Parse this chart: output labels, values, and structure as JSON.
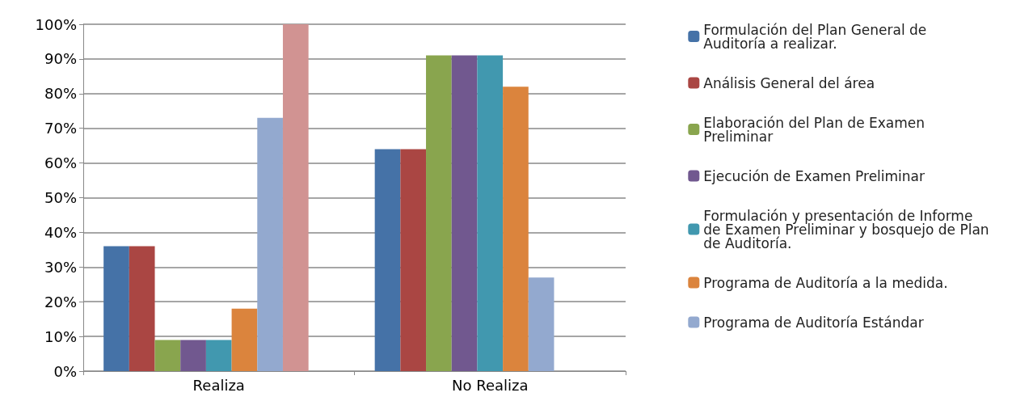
{
  "chart_data": {
    "type": "bar",
    "categories": [
      "Realiza",
      "No Realiza"
    ],
    "series": [
      {
        "name": "Formulación del Plan General de Auditoría a realizar.",
        "color": "#4572a7",
        "values": [
          36,
          64
        ]
      },
      {
        "name": "Análisis General del área",
        "color": "#aa4643",
        "values": [
          36,
          64
        ]
      },
      {
        "name": "Elaboración del Plan de Examen Preliminar",
        "color": "#89a54e",
        "values": [
          9,
          91
        ]
      },
      {
        "name": "Ejecución de Examen Preliminar",
        "color": "#71588f",
        "values": [
          9,
          91
        ]
      },
      {
        "name": "Formulación y presentación de Informe de Examen Preliminar y bosquejo de Plan de Auditoría.",
        "color": "#4198af",
        "values": [
          9,
          91
        ]
      },
      {
        "name": "Programa de Auditoría a la medida.",
        "color": "#db843d",
        "values": [
          18,
          82
        ]
      },
      {
        "name": "Programa de Auditoría Estándar",
        "color": "#93a9cf",
        "values": [
          73,
          27
        ]
      },
      {
        "color": "#d19392",
        "values": [
          100,
          0
        ]
      },
      {
        "color": "#8fa870",
        "values": [
          0,
          0
        ]
      }
    ],
    "ylim": [
      0,
      100
    ],
    "yticks": [
      {
        "value": 0,
        "label": "0%"
      },
      {
        "value": 10,
        "label": "10%"
      },
      {
        "value": 20,
        "label": "20%"
      },
      {
        "value": 30,
        "label": "30%"
      },
      {
        "value": 40,
        "label": "40%"
      },
      {
        "value": 50,
        "label": "50%"
      },
      {
        "value": 60,
        "label": "60%"
      },
      {
        "value": 70,
        "label": "70%"
      },
      {
        "value": 80,
        "label": "80%"
      },
      {
        "value": 90,
        "label": "90%"
      },
      {
        "value": 100,
        "label": "100%"
      }
    ],
    "grid": "y",
    "legend": "right"
  }
}
